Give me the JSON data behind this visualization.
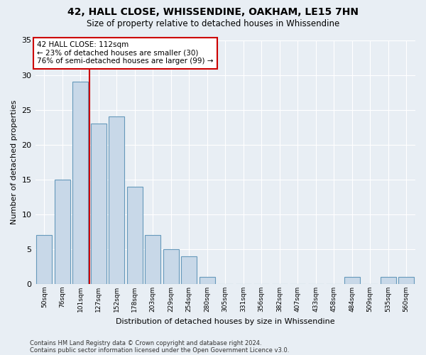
{
  "title1": "42, HALL CLOSE, WHISSENDINE, OAKHAM, LE15 7HN",
  "title2": "Size of property relative to detached houses in Whissendine",
  "xlabel": "Distribution of detached houses by size in Whissendine",
  "ylabel": "Number of detached properties",
  "bar_labels": [
    "50sqm",
    "76sqm",
    "101sqm",
    "127sqm",
    "152sqm",
    "178sqm",
    "203sqm",
    "229sqm",
    "254sqm",
    "280sqm",
    "305sqm",
    "331sqm",
    "356sqm",
    "382sqm",
    "407sqm",
    "433sqm",
    "458sqm",
    "484sqm",
    "509sqm",
    "535sqm",
    "560sqm"
  ],
  "bar_values": [
    7,
    15,
    29,
    23,
    24,
    14,
    7,
    5,
    4,
    1,
    0,
    0,
    0,
    0,
    0,
    0,
    0,
    1,
    0,
    1,
    1
  ],
  "bar_color": "#c8d8e8",
  "bar_edgecolor": "#6699bb",
  "bg_color": "#e8eef4",
  "grid_color": "#ffffff",
  "vline_x_index": 2,
  "vline_color": "#cc0000",
  "annotation_text": "42 HALL CLOSE: 112sqm\n← 23% of detached houses are smaller (30)\n76% of semi-detached houses are larger (99) →",
  "annotation_box_color": "#ffffff",
  "annotation_box_edgecolor": "#cc0000",
  "ylim": [
    0,
    35
  ],
  "yticks": [
    0,
    5,
    10,
    15,
    20,
    25,
    30,
    35
  ],
  "footnote1": "Contains HM Land Registry data © Crown copyright and database right 2024.",
  "footnote2": "Contains public sector information licensed under the Open Government Licence v3.0."
}
